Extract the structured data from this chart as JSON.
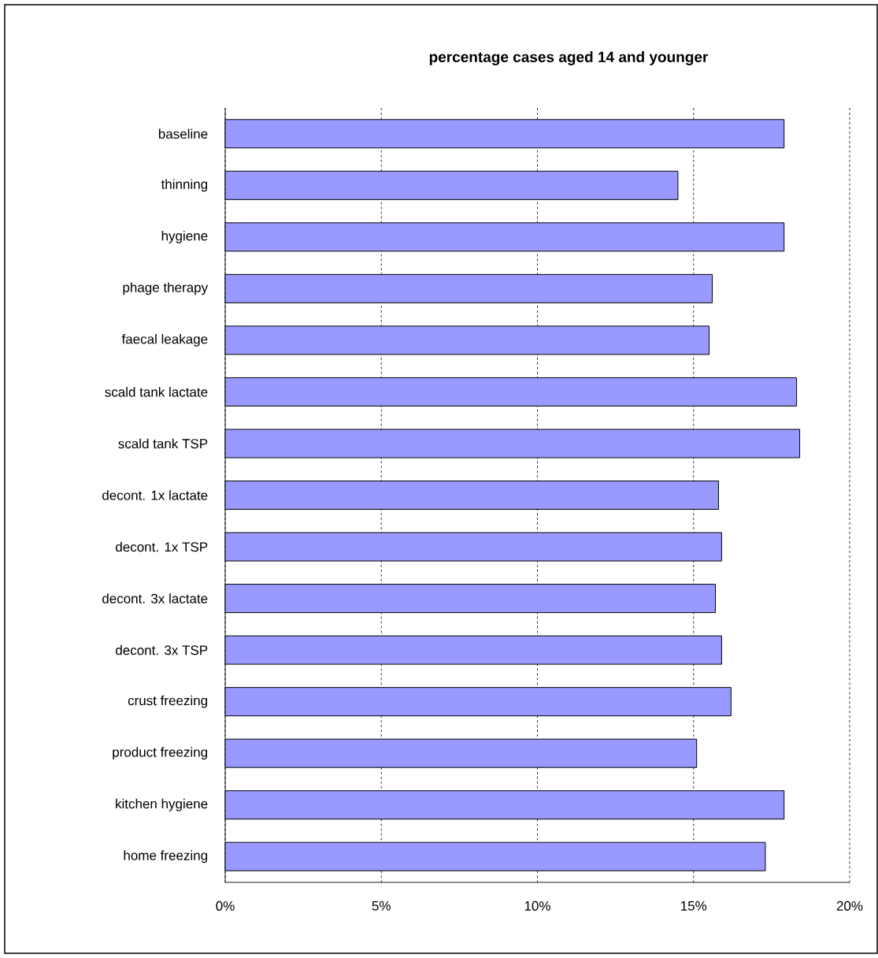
{
  "chart_data": {
    "type": "bar",
    "orientation": "horizontal",
    "title": "percentage cases aged 14 and younger",
    "categories": [
      "baseline",
      "thinning",
      "hygiene",
      "phage therapy",
      "faecal leakage",
      "scald tank lactate",
      "scald tank TSP",
      "decont. 1x lactate",
      "decont. 1x TSP",
      "decont. 3x lactate",
      "decont. 3x TSP",
      "crust freezing",
      "product freezing",
      "kitchen hygiene",
      "home freezing"
    ],
    "values": [
      17.9,
      14.5,
      17.9,
      15.6,
      15.5,
      18.3,
      18.4,
      15.8,
      15.9,
      15.7,
      15.9,
      16.2,
      15.1,
      17.9,
      17.3
    ],
    "color": "#9999ff",
    "xlim": [
      0,
      20
    ],
    "xticks": [
      {
        "value": 0,
        "label": "0%"
      },
      {
        "value": 5,
        "label": "5%"
      },
      {
        "value": 10,
        "label": "10%"
      },
      {
        "value": 15,
        "label": "15%"
      },
      {
        "value": 20,
        "label": "20%"
      }
    ],
    "grid": "x"
  }
}
